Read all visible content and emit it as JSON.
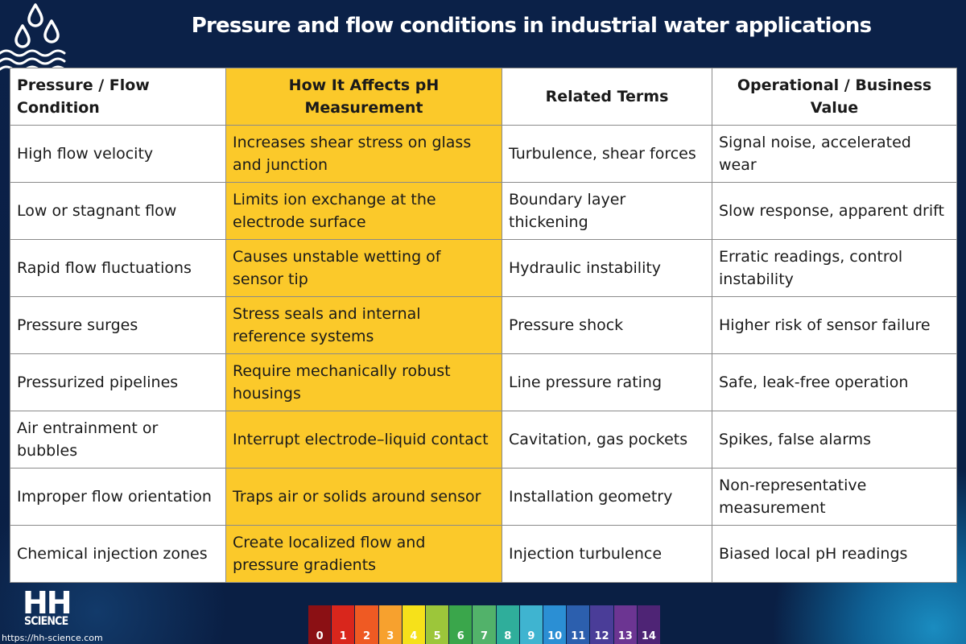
{
  "title": "Pressure and flow conditions in industrial water applications",
  "table": {
    "headers": [
      "Pressure / Flow Condition",
      "How It Affects pH Measurement",
      "Related Terms",
      "Operational / Business Value"
    ],
    "rows": [
      [
        "High flow velocity",
        "Increases shear stress on glass and junction",
        "Turbulence, shear forces",
        "Signal noise, accelerated wear"
      ],
      [
        "Low or stagnant flow",
        "Limits ion exchange at the electrode surface",
        "Boundary layer thickening",
        "Slow response, apparent drift"
      ],
      [
        "Rapid flow fluctuations",
        "Causes unstable wetting of sensor tip",
        "Hydraulic instability",
        "Erratic readings, control instability"
      ],
      [
        "Pressure surges",
        "Stress seals and internal reference systems",
        "Pressure shock",
        "Higher risk of sensor failure"
      ],
      [
        "Pressurized pipelines",
        "Require mechanically robust housings",
        "Line pressure rating",
        "Safe, leak-free operation"
      ],
      [
        "Air entrainment or bubbles",
        "Interrupt electrode–liquid contact",
        "Cavitation, gas pockets",
        "Spikes, false alarms"
      ],
      [
        "Improper flow orientation",
        "Traps air or solids around sensor",
        "Installation geometry",
        "Non-representative measurement"
      ],
      [
        "Chemical injection zones",
        "Create localized flow and pressure gradients",
        "Injection turbulence",
        "Biased local pH readings"
      ]
    ]
  },
  "colors": {
    "background": "#0a2046",
    "highlight_column": "#fbc92a",
    "table_background": "#ffffff"
  },
  "branding": {
    "logo_text": "HH",
    "logo_subtext": "SCIENCE",
    "url": "https://hh-science.com"
  },
  "ph_scale": {
    "labels": [
      "0",
      "1",
      "2",
      "3",
      "4",
      "5",
      "6",
      "7",
      "8",
      "9",
      "10",
      "11",
      "12",
      "13",
      "14"
    ],
    "colors": [
      "#8b1014",
      "#d9261c",
      "#ef5a23",
      "#f7a12e",
      "#f6e11a",
      "#9cc63a",
      "#3aa64b",
      "#52b26a",
      "#2fae9b",
      "#3fb4d0",
      "#2b8fd4",
      "#2c5fae",
      "#4a3d98",
      "#6c3592",
      "#4e2475"
    ]
  }
}
